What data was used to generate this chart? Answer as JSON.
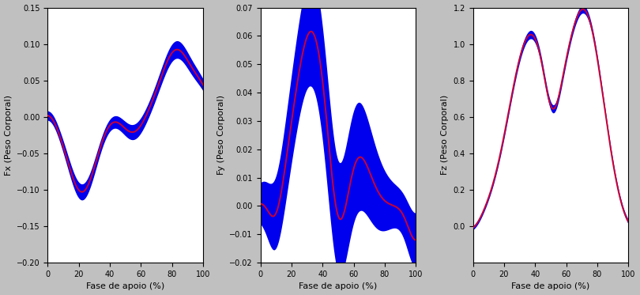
{
  "fig_width": 8.1,
  "fig_height": 3.73,
  "dpi": 100,
  "bg_color": "#c0c0c0",
  "plot_bg_color": "#ffffff",
  "blue_fill_color": "#0000ee",
  "red_line_color": "#cc0033",
  "subplots": [
    {
      "ylabel": "Fx (Peso Corporal)",
      "xlabel": "Fase de apoio (%)",
      "ylim": [
        -0.2,
        0.15
      ],
      "yticks": [
        -0.2,
        -0.15,
        -0.1,
        -0.05,
        0,
        0.05,
        0.1,
        0.15
      ],
      "xlim": [
        0,
        100
      ],
      "xticks": [
        0,
        20,
        40,
        60,
        80,
        100
      ]
    },
    {
      "ylabel": "Fy (Peso Corporal)",
      "xlabel": "Fase de apoio (%)",
      "ylim": [
        -0.02,
        0.07
      ],
      "yticks": [
        -0.02,
        -0.01,
        0,
        0.01,
        0.02,
        0.03,
        0.04,
        0.05,
        0.06,
        0.07
      ],
      "xlim": [
        0,
        100
      ],
      "xticks": [
        0,
        20,
        40,
        60,
        80,
        100
      ]
    },
    {
      "ylabel": "Fz (Peso Corporal)",
      "xlabel": "Fase de apoio (%)",
      "ylim": [
        -0.2,
        1.2
      ],
      "yticks": [
        0,
        0.2,
        0.4,
        0.6,
        0.8,
        1.0,
        1.2
      ],
      "xlim": [
        0,
        100
      ],
      "xticks": [
        0,
        20,
        40,
        60,
        80,
        100
      ]
    }
  ]
}
